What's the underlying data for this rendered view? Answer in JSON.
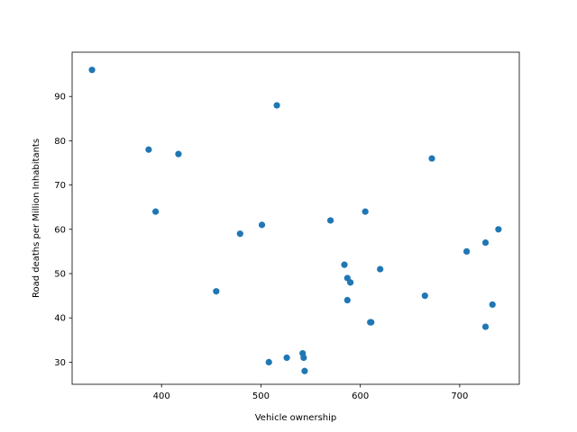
{
  "chart_data": {
    "type": "scatter",
    "xlabel": "Vehicle ownership",
    "ylabel": "Road deaths per Million Inhabitants",
    "xlim": [
      310,
      760
    ],
    "ylim": [
      25,
      100
    ],
    "x_ticks": [
      400,
      500,
      600,
      700
    ],
    "y_ticks": [
      30,
      40,
      50,
      60,
      70,
      80,
      90
    ],
    "marker_color": "#1f77b4",
    "grid": false,
    "points": [
      {
        "x": 330,
        "y": 96
      },
      {
        "x": 387,
        "y": 78
      },
      {
        "x": 394,
        "y": 64
      },
      {
        "x": 417,
        "y": 77
      },
      {
        "x": 455,
        "y": 46
      },
      {
        "x": 479,
        "y": 59
      },
      {
        "x": 501,
        "y": 61
      },
      {
        "x": 508,
        "y": 30
      },
      {
        "x": 516,
        "y": 88
      },
      {
        "x": 526,
        "y": 31
      },
      {
        "x": 542,
        "y": 32
      },
      {
        "x": 543,
        "y": 31
      },
      {
        "x": 544,
        "y": 28
      },
      {
        "x": 570,
        "y": 62
      },
      {
        "x": 584,
        "y": 52
      },
      {
        "x": 587,
        "y": 49
      },
      {
        "x": 587,
        "y": 44
      },
      {
        "x": 590,
        "y": 48
      },
      {
        "x": 605,
        "y": 64
      },
      {
        "x": 610,
        "y": 39
      },
      {
        "x": 611,
        "y": 39
      },
      {
        "x": 620,
        "y": 51
      },
      {
        "x": 665,
        "y": 45
      },
      {
        "x": 672,
        "y": 76
      },
      {
        "x": 707,
        "y": 55
      },
      {
        "x": 726,
        "y": 57
      },
      {
        "x": 726,
        "y": 38
      },
      {
        "x": 733,
        "y": 43
      },
      {
        "x": 739,
        "y": 60
      }
    ]
  }
}
